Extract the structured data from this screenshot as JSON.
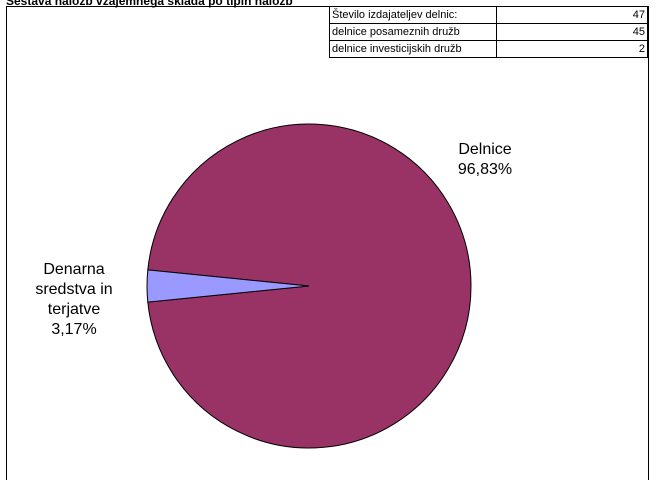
{
  "title": "Sestava naložb vzajemnega sklada po tipih naložb",
  "info_table": [
    {
      "label": "Število izdajateljev delnic:",
      "value": "47"
    },
    {
      "label": "delnice posameznih družb",
      "value": "45"
    },
    {
      "label": "delnice investicijskih družb",
      "value": "2"
    }
  ],
  "chart_data": {
    "type": "pie",
    "slices": [
      {
        "label": "Delnice",
        "value": 96.83,
        "display": "96,83%",
        "color": "#993366"
      },
      {
        "label": "Denarna sredstva in terjatve",
        "value": 3.17,
        "display": "3,17%",
        "color": "#9999FF"
      }
    ],
    "label_lines": {
      "delnice": [
        "Delnice",
        "96,83%"
      ],
      "denarna": [
        "Denarna",
        "sredstva in",
        "terjatve",
        "3,17%"
      ]
    }
  }
}
